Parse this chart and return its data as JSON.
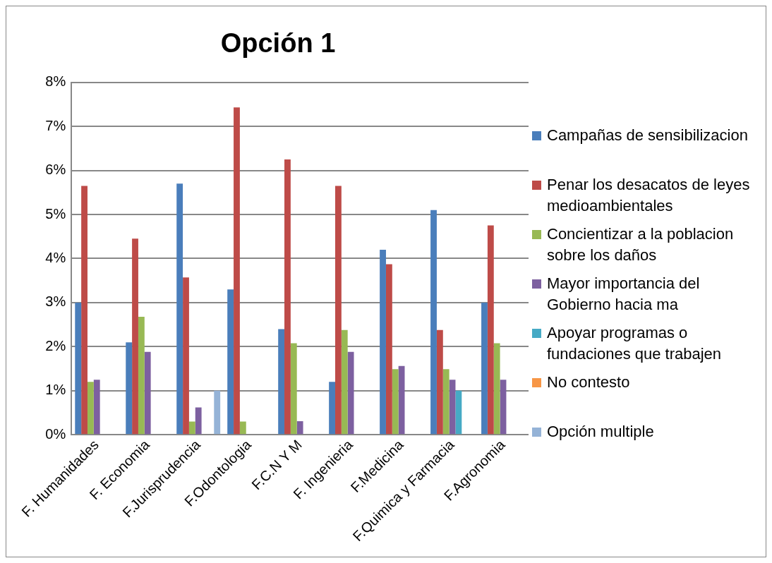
{
  "chart_data": {
    "type": "bar",
    "title": "Opción 1",
    "categories": [
      "F. Humanidades",
      "F. Economia",
      "F.Jurisprudencia",
      "F.Odontologia",
      "F.C.N Y M",
      "F. Ingenieria",
      "F.Medicina",
      "F.Quimica y Farmacia",
      "F.Agronomia"
    ],
    "series": [
      {
        "name": "Campañas de sensibilizacion",
        "color": "#4a7ebb",
        "values": [
          3.0,
          2.1,
          5.7,
          3.3,
          2.4,
          1.2,
          4.2,
          5.1,
          3.0
        ]
      },
      {
        "name": "Penar los desacatos de leyes medioambientales",
        "color": "#be4b48",
        "values": [
          5.65,
          4.45,
          3.57,
          7.43,
          6.25,
          5.65,
          3.87,
          2.38,
          4.75
        ]
      },
      {
        "name": "Concientizar a la poblacion sobre los daños",
        "color": "#98b954",
        "values": [
          1.2,
          2.68,
          0.3,
          0.3,
          2.08,
          2.38,
          1.49,
          1.49,
          2.08
        ]
      },
      {
        "name": "Mayor importancia del Gobierno hacia ma",
        "color": "#7d60a0",
        "values": [
          1.25,
          1.88,
          0.62,
          null,
          0.31,
          1.88,
          1.56,
          1.25,
          1.25
        ]
      },
      {
        "name": "Apoyar programas o fundaciones que trabajen",
        "color": "#46aac5",
        "values": [
          null,
          null,
          null,
          null,
          null,
          null,
          null,
          1.0,
          null
        ]
      },
      {
        "name": "No contesto",
        "color": "#f79646",
        "values": [
          null,
          null,
          null,
          null,
          null,
          null,
          null,
          null,
          null
        ]
      },
      {
        "name": "Opción multiple",
        "color": "#95b3d7",
        "values": [
          null,
          null,
          1.0,
          null,
          null,
          null,
          null,
          null,
          null
        ]
      }
    ],
    "ylim": [
      0,
      8
    ],
    "yticks": [
      {
        "value": 0,
        "label": "0%"
      },
      {
        "value": 1,
        "label": "1%"
      },
      {
        "value": 2,
        "label": "2%"
      },
      {
        "value": 3,
        "label": "3%"
      },
      {
        "value": 4,
        "label": "4%"
      },
      {
        "value": 5,
        "label": "5%"
      },
      {
        "value": 6,
        "label": "6%"
      },
      {
        "value": 7,
        "label": "7%"
      },
      {
        "value": 8,
        "label": "8%"
      }
    ],
    "grid": "y",
    "legend": "right"
  }
}
